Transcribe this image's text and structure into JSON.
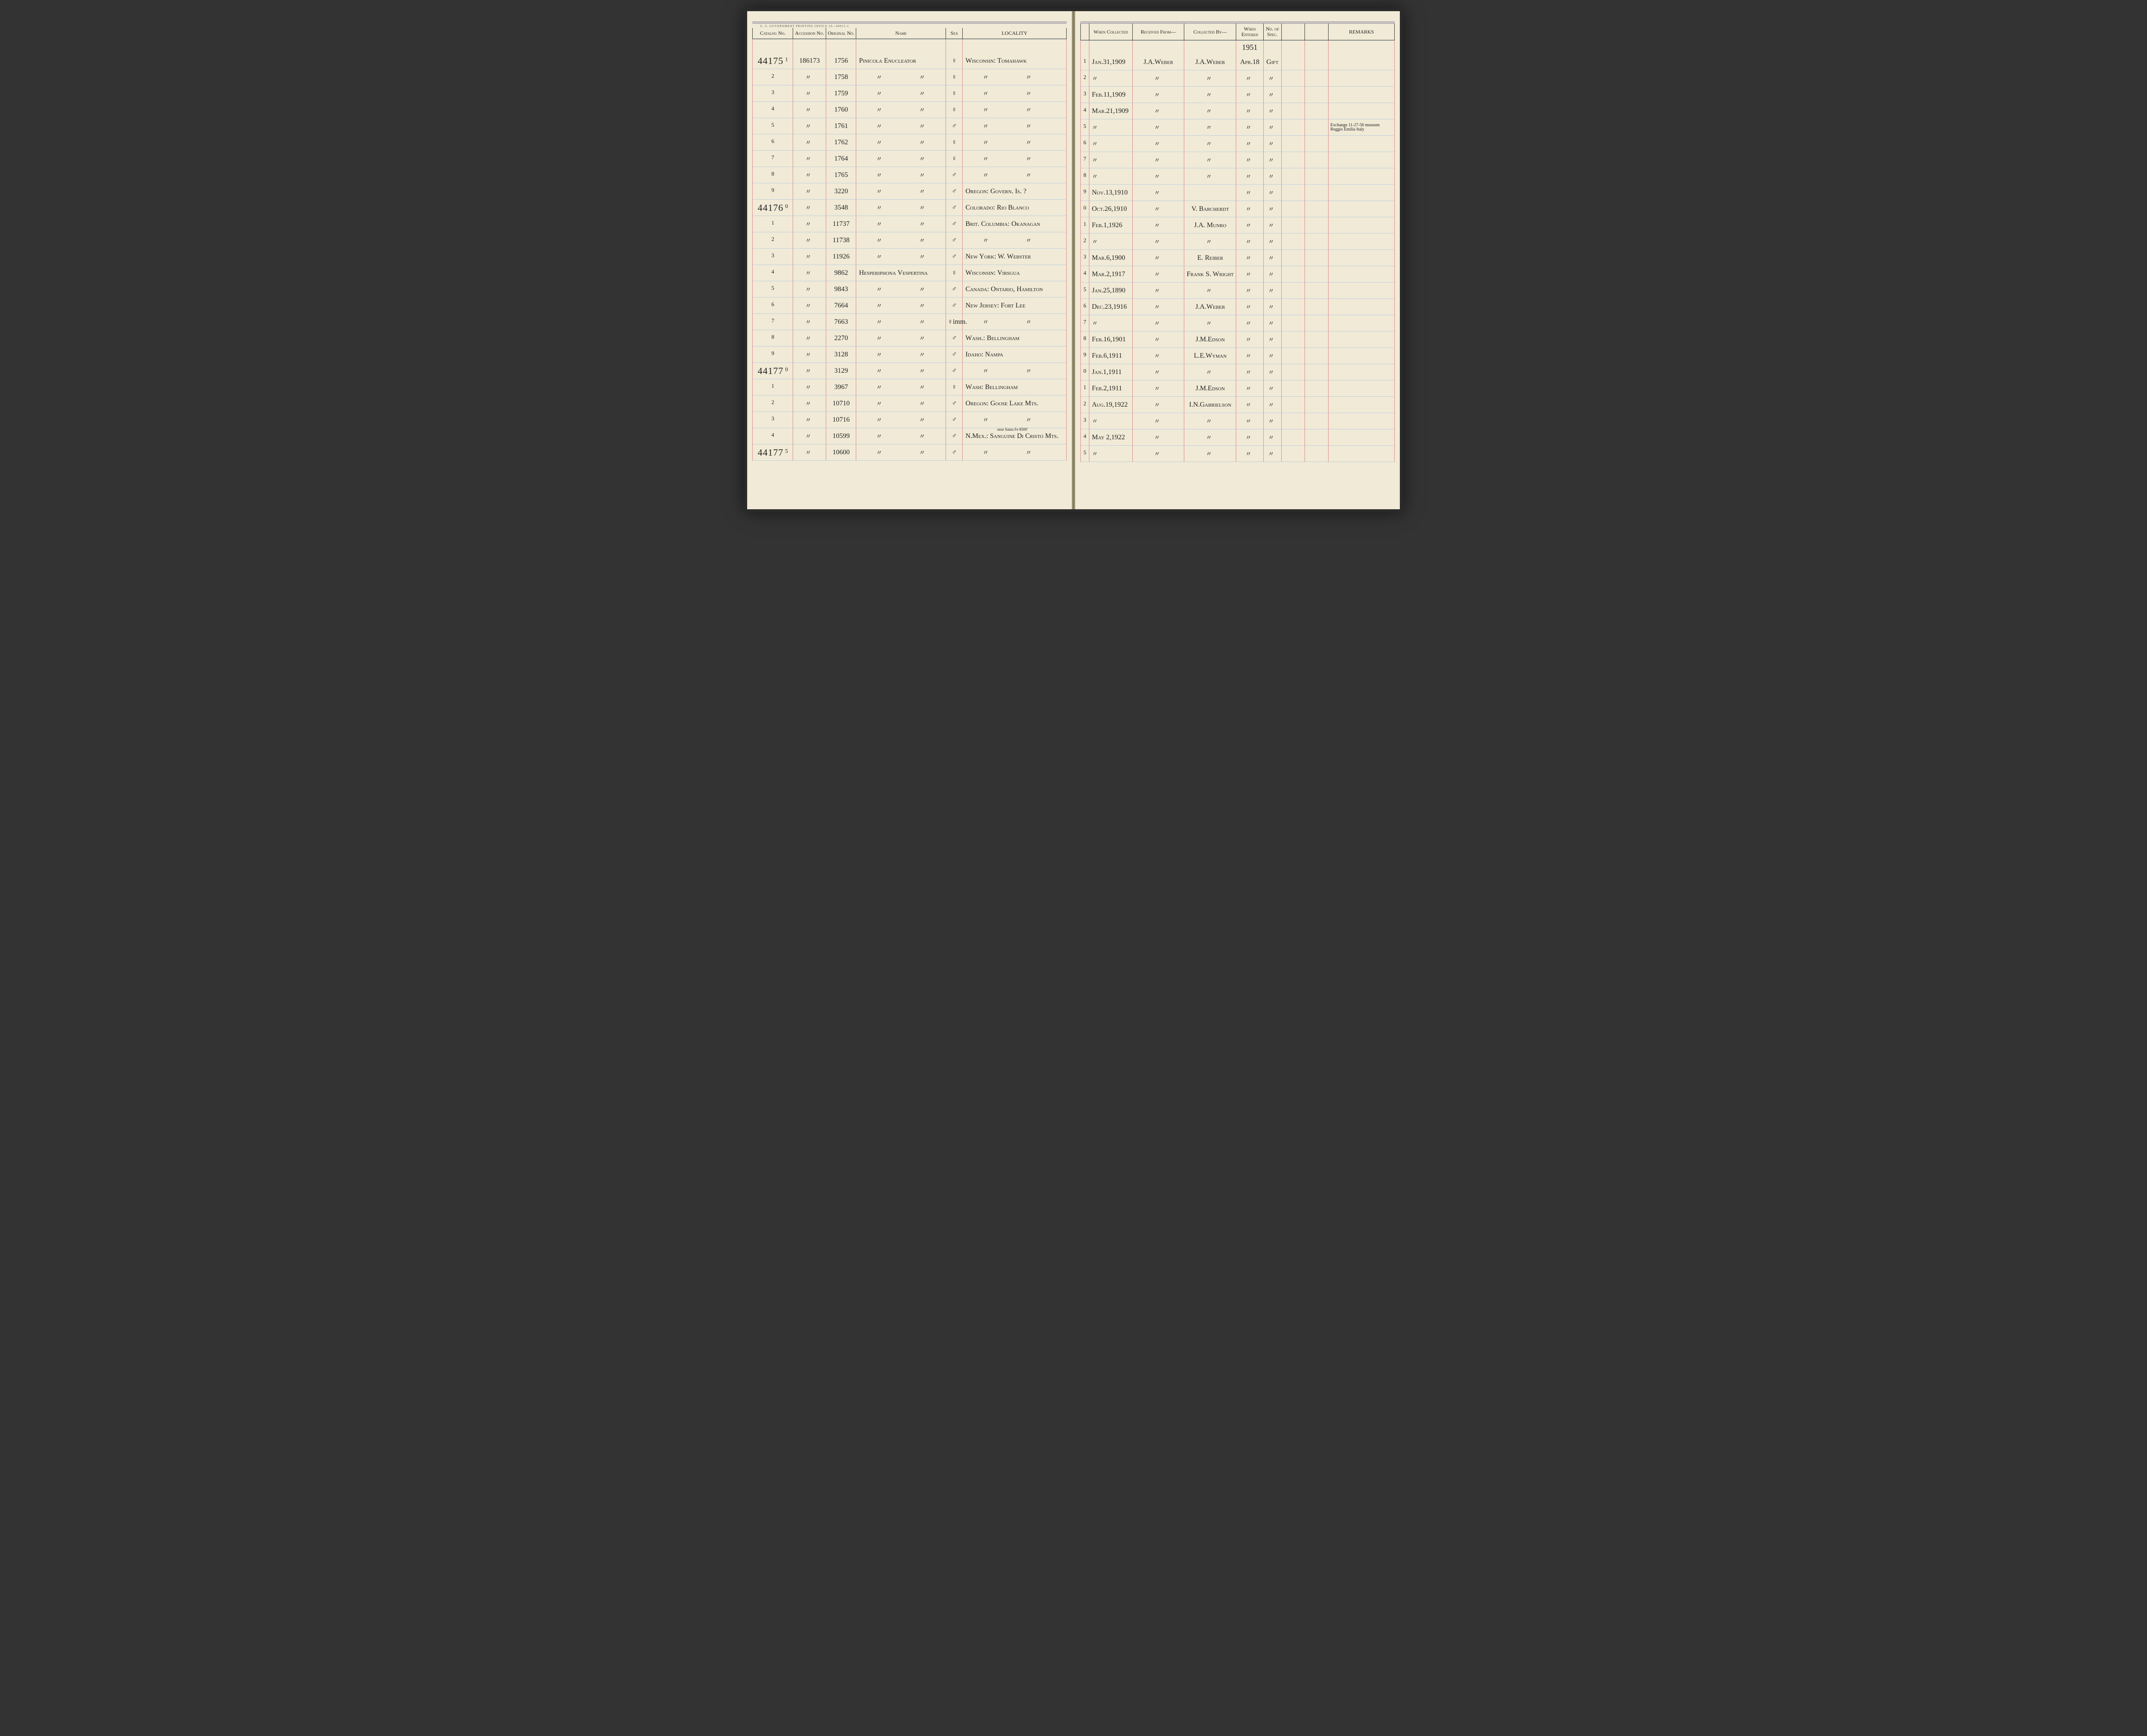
{
  "print_note": "U. S. GOVERNMENT PRINTING OFFICE   10—60915-1",
  "headers_left": {
    "catalog": "Catalog\nNo.",
    "accession": "Accession\nNo.",
    "original": "Original\nNo.",
    "name": "Name",
    "sex": "Sex",
    "locality": "LOCALITY"
  },
  "headers_right": {
    "when_collected": "When\nCollected",
    "received": "Received From—",
    "collected": "Collected By—",
    "when_entered": "When\nEntered",
    "no_spec": "No.\nof\nSpec.",
    "remarks": "REMARKS"
  },
  "pre_row": {
    "when_entered": "1951"
  },
  "rows": [
    {
      "catalog_main": "44175",
      "catalog_sub": "1",
      "accession": "186173",
      "original": "1756",
      "name": "Pinicola Enucleator",
      "sex": "♀",
      "locality": "Wisconsin: Tomahawk",
      "r_sub": "1",
      "when": "Jan.31,1909",
      "received": "J.A.Weber",
      "collected": "J.A.Weber",
      "entered": "Apr.18",
      "spec": "Gift",
      "remarks": ""
    },
    {
      "catalog_main": "",
      "catalog_sub": "2",
      "accession": "〃",
      "original": "1758",
      "name": "〃",
      "name2": "〃",
      "sex": "♀",
      "locality": "〃",
      "locality2": "〃",
      "r_sub": "2",
      "when": "〃",
      "received": "〃",
      "collected": "〃",
      "entered": "〃",
      "spec": "〃",
      "remarks": ""
    },
    {
      "catalog_main": "",
      "catalog_sub": "3",
      "accession": "〃",
      "original": "1759",
      "name": "〃",
      "name2": "〃",
      "sex": "♀",
      "locality": "〃",
      "locality2": "〃",
      "r_sub": "3",
      "when": "Feb.11,1909",
      "received": "〃",
      "collected": "〃",
      "entered": "〃",
      "spec": "〃",
      "remarks": ""
    },
    {
      "catalog_main": "",
      "catalog_sub": "4",
      "accession": "〃",
      "original": "1760",
      "name": "〃",
      "name2": "〃",
      "sex": "♀",
      "locality": "〃",
      "locality2": "〃",
      "r_sub": "4",
      "when": "Mar.21,1909",
      "received": "〃",
      "collected": "〃",
      "entered": "〃",
      "spec": "〃",
      "remarks": ""
    },
    {
      "catalog_main": "",
      "catalog_sub": "5",
      "accession": "〃",
      "original": "1761",
      "name": "〃",
      "name2": "〃",
      "sex": "♂",
      "locality": "〃",
      "locality2": "〃",
      "r_sub": "5",
      "when": "〃",
      "received": "〃",
      "collected": "〃",
      "entered": "〃",
      "spec": "〃",
      "remarks": "Exchange 11-27-56 museum Reggio Emilia Italy"
    },
    {
      "catalog_main": "",
      "catalog_sub": "6",
      "accession": "〃",
      "original": "1762",
      "name": "〃",
      "name2": "〃",
      "sex": "♀",
      "locality": "〃",
      "locality2": "〃",
      "r_sub": "6",
      "when": "〃",
      "received": "〃",
      "collected": "〃",
      "entered": "〃",
      "spec": "〃",
      "remarks": ""
    },
    {
      "catalog_main": "",
      "catalog_sub": "7",
      "accession": "〃",
      "original": "1764",
      "name": "〃",
      "name2": "〃",
      "sex": "♀",
      "locality": "〃",
      "locality2": "〃",
      "r_sub": "7",
      "when": "〃",
      "received": "〃",
      "collected": "〃",
      "entered": "〃",
      "spec": "〃",
      "remarks": ""
    },
    {
      "catalog_main": "",
      "catalog_sub": "8",
      "accession": "〃",
      "original": "1765",
      "name": "〃",
      "name2": "〃",
      "sex": "♂",
      "locality": "〃",
      "locality2": "〃",
      "r_sub": "8",
      "when": "〃",
      "received": "〃",
      "collected": "〃",
      "entered": "〃",
      "spec": "〃",
      "remarks": ""
    },
    {
      "catalog_main": "",
      "catalog_sub": "9",
      "accession": "〃",
      "original": "3220",
      "name": "〃",
      "name2": "〃",
      "sex": "♂",
      "locality": "Oregon: Govern. Is. ?",
      "r_sub": "9",
      "when": "Nov.13,1910",
      "received": "〃",
      "collected": "",
      "entered": "〃",
      "spec": "〃",
      "remarks": ""
    },
    {
      "catalog_main": "44176",
      "catalog_sub": "0",
      "accession": "〃",
      "original": "3548",
      "name": "〃",
      "name2": "〃",
      "sex": "♂",
      "locality": "Colorado: Rio Blanco",
      "r_sub": "0",
      "when": "Oct.26,1910",
      "received": "〃",
      "collected": "V. Barcherdt",
      "entered": "〃",
      "spec": "〃",
      "remarks": ""
    },
    {
      "catalog_main": "",
      "catalog_sub": "1",
      "accession": "〃",
      "original": "11737",
      "name": "〃",
      "name2": "〃",
      "sex": "♂",
      "locality": "Brit. Columbia: Okanagan",
      "r_sub": "1",
      "when": "Feb.1,1926",
      "received": "〃",
      "collected": "J.A. Munro",
      "entered": "〃",
      "spec": "〃",
      "remarks": ""
    },
    {
      "catalog_main": "",
      "catalog_sub": "2",
      "accession": "〃",
      "original": "11738",
      "name": "〃",
      "name2": "〃",
      "sex": "♂",
      "locality": "〃",
      "locality2": "〃",
      "r_sub": "2",
      "when": "〃",
      "received": "〃",
      "collected": "〃",
      "entered": "〃",
      "spec": "〃",
      "remarks": ""
    },
    {
      "catalog_main": "",
      "catalog_sub": "3",
      "accession": "〃",
      "original": "11926",
      "name": "〃",
      "name2": "〃",
      "sex": "♂",
      "locality": "New York: W. Webster",
      "r_sub": "3",
      "when": "Mar.6,1900",
      "received": "〃",
      "collected": "E. Reiber",
      "entered": "〃",
      "spec": "〃",
      "remarks": ""
    },
    {
      "catalog_main": "",
      "catalog_sub": "4",
      "accession": "〃",
      "original": "9862",
      "name": "Hesperiphona Vespertina",
      "sex": "♀",
      "locality": "Wisconsin: Virsgua",
      "r_sub": "4",
      "when": "Mar.2,1917",
      "received": "〃",
      "collected": "Frank S. Wright",
      "entered": "〃",
      "spec": "〃",
      "remarks": ""
    },
    {
      "catalog_main": "",
      "catalog_sub": "5",
      "accession": "〃",
      "original": "9843",
      "name": "〃",
      "name2": "〃",
      "sex": "♂",
      "locality": "Canada: Ontario, Hamilton",
      "r_sub": "5",
      "when": "Jan.25,1890",
      "received": "〃",
      "collected": "〃",
      "entered": "〃",
      "spec": "〃",
      "remarks": ""
    },
    {
      "catalog_main": "",
      "catalog_sub": "6",
      "accession": "〃",
      "original": "7664",
      "name": "〃",
      "name2": "〃",
      "sex": "♂",
      "locality": "New Jersey: Fort Lee",
      "r_sub": "6",
      "when": "Dec.23,1916",
      "received": "〃",
      "collected": "J.A.Weber",
      "entered": "〃",
      "spec": "〃",
      "remarks": ""
    },
    {
      "catalog_main": "",
      "catalog_sub": "7",
      "accession": "〃",
      "original": "7663",
      "name": "〃",
      "name2": "〃",
      "sex": "♀imm.",
      "locality": "〃",
      "locality2": "〃",
      "r_sub": "7",
      "when": "〃",
      "received": "〃",
      "collected": "〃",
      "entered": "〃",
      "spec": "〃",
      "remarks": ""
    },
    {
      "catalog_main": "",
      "catalog_sub": "8",
      "accession": "〃",
      "original": "2270",
      "name": "〃",
      "name2": "〃",
      "sex": "♂",
      "locality": "Wash.: Bellingham",
      "r_sub": "8",
      "when": "Feb.16,1901",
      "received": "〃",
      "collected": "J.M.Edson",
      "entered": "〃",
      "spec": "〃",
      "remarks": ""
    },
    {
      "catalog_main": "",
      "catalog_sub": "9",
      "accession": "〃",
      "original": "3128",
      "name": "〃",
      "name2": "〃",
      "sex": "♂",
      "locality": "Idaho: Nampa",
      "r_sub": "9",
      "when": "Feb.6,1911",
      "received": "〃",
      "collected": "L.E.Wyman",
      "entered": "〃",
      "spec": "〃",
      "remarks": ""
    },
    {
      "catalog_main": "44177",
      "catalog_sub": "0",
      "accession": "〃",
      "original": "3129",
      "name": "〃",
      "name2": "〃",
      "sex": "♂",
      "locality": "〃",
      "locality2": "〃",
      "r_sub": "0",
      "when": "Jan.1,1911",
      "received": "〃",
      "collected": "〃",
      "entered": "〃",
      "spec": "〃",
      "remarks": ""
    },
    {
      "catalog_main": "",
      "catalog_sub": "1",
      "accession": "〃",
      "original": "3967",
      "name": "〃",
      "name2": "〃",
      "sex": "♀",
      "locality": "Wash: Bellingham",
      "r_sub": "1",
      "when": "Feb.2,1911",
      "received": "〃",
      "collected": "J.M.Edson",
      "entered": "〃",
      "spec": "〃",
      "remarks": ""
    },
    {
      "catalog_main": "",
      "catalog_sub": "2",
      "accession": "〃",
      "original": "10710",
      "name": "〃",
      "name2": "〃",
      "sex": "♂",
      "locality": "Oregon: Goose Lake Mts.",
      "r_sub": "2",
      "when": "Aug.19,1922",
      "received": "〃",
      "collected": "I.N.Gabrielson",
      "entered": "〃",
      "spec": "〃",
      "remarks": ""
    },
    {
      "catalog_main": "",
      "catalog_sub": "3",
      "accession": "〃",
      "original": "10716",
      "name": "〃",
      "name2": "〃",
      "sex": "♂",
      "locality": "〃",
      "locality2": "〃",
      "r_sub": "3",
      "when": "〃",
      "received": "〃",
      "collected": "〃",
      "entered": "〃",
      "spec": "〃",
      "remarks": ""
    },
    {
      "catalog_main": "",
      "catalog_sub": "4",
      "accession": "〃",
      "original": "10599",
      "name": "〃",
      "name2": "〃",
      "sex": "♂",
      "locality": "N.Mex.: Sanguine Di Cristo Mts.",
      "locality_note": "near Santa Fe   8500'",
      "r_sub": "4",
      "when": "May 2,1922",
      "received": "〃",
      "collected": "〃",
      "entered": "〃",
      "spec": "〃",
      "remarks": ""
    },
    {
      "catalog_main": "44177",
      "catalog_sub": "5",
      "accession": "〃",
      "original": "10600",
      "name": "〃",
      "name2": "〃",
      "sex": "♂",
      "locality": "〃",
      "locality2": "〃",
      "r_sub": "5",
      "when": "〃",
      "received": "〃",
      "collected": "〃",
      "entered": "〃",
      "spec": "〃",
      "remarks": ""
    }
  ],
  "colwidths_left": [
    86,
    70,
    64,
    190,
    36,
    220
  ],
  "colwidths_right": [
    18,
    92,
    110,
    110,
    58,
    38,
    50,
    50,
    140
  ],
  "colors": {
    "paper": "#f0ead6",
    "rule_blue": "#c0d0e0",
    "rule_red": "#d88",
    "ink": "#222"
  }
}
